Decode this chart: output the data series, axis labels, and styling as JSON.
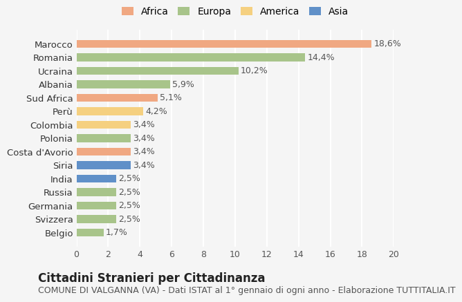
{
  "countries": [
    "Marocco",
    "Romania",
    "Ucraina",
    "Albania",
    "Sud Africa",
    "Perù",
    "Colombia",
    "Polonia",
    "Costa d'Avorio",
    "Siria",
    "India",
    "Russia",
    "Germania",
    "Svizzera",
    "Belgio"
  ],
  "values": [
    18.6,
    14.4,
    10.2,
    5.9,
    5.1,
    4.2,
    3.4,
    3.4,
    3.4,
    3.4,
    2.5,
    2.5,
    2.5,
    2.5,
    1.7
  ],
  "labels": [
    "18,6%",
    "14,4%",
    "10,2%",
    "5,9%",
    "5,1%",
    "4,2%",
    "3,4%",
    "3,4%",
    "3,4%",
    "3,4%",
    "2,5%",
    "2,5%",
    "2,5%",
    "2,5%",
    "1,7%"
  ],
  "continents": [
    "Africa",
    "Europa",
    "Europa",
    "Europa",
    "Africa",
    "America",
    "America",
    "Europa",
    "Africa",
    "Asia",
    "Asia",
    "Europa",
    "Europa",
    "Europa",
    "Europa"
  ],
  "colors": {
    "Africa": "#F0A882",
    "Europa": "#A8C48A",
    "America": "#F5D080",
    "Asia": "#6090C8"
  },
  "legend_colors": {
    "Africa": "#F0A882",
    "Europa": "#A8C48A",
    "America": "#F5D080",
    "Asia": "#6090C8"
  },
  "xlim": [
    0,
    20
  ],
  "xticks": [
    0,
    2,
    4,
    6,
    8,
    10,
    12,
    14,
    16,
    18,
    20
  ],
  "title": "Cittadini Stranieri per Cittadinanza",
  "subtitle": "COMUNE DI VALGANNA (VA) - Dati ISTAT al 1° gennaio di ogni anno - Elaborazione TUTTITALIA.IT",
  "background_color": "#f5f5f5",
  "bar_height": 0.6,
  "grid_color": "#ffffff",
  "label_fontsize": 9,
  "title_fontsize": 12,
  "subtitle_fontsize": 9
}
